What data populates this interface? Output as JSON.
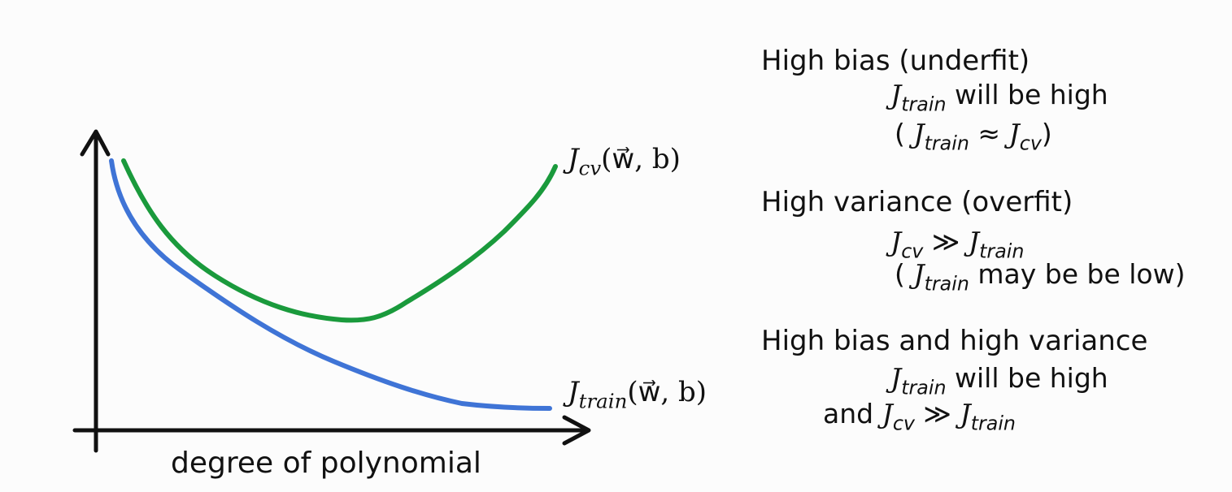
{
  "diagram": {
    "x_axis_label": "degree of polynomial",
    "curves": {
      "cv": {
        "label_main": "J",
        "label_sub": "cv",
        "label_args": "(w⃗, b)",
        "color": "#1a9a3c"
      },
      "train": {
        "label_main": "J",
        "label_sub": "train",
        "label_args": "(w⃗, b)",
        "color": "#3f74d6"
      }
    }
  },
  "notes": {
    "high_bias": {
      "heading": "High bias (underfit)",
      "line1_sym": "J",
      "line1_sub": "train",
      "line1_text": " will be high",
      "line2": {
        "open": "( ",
        "a": "J",
        "a_sub": "train",
        "op": " ≈ ",
        "b": "J",
        "b_sub": "cv",
        "close": ")"
      }
    },
    "high_variance": {
      "heading": "High variance (overfit)",
      "line1": {
        "a": "J",
        "a_sub": "cv",
        "op": " ≫ ",
        "b": "J",
        "b_sub": "train"
      },
      "line2": {
        "open": "( ",
        "a": "J",
        "a_sub": "train",
        "text": " may be be low)"
      }
    },
    "both": {
      "heading": "High bias and high variance",
      "line1_sym": "J",
      "line1_sub": "train",
      "line1_text": " will be high",
      "line2": {
        "prefix": "and ",
        "a": "J",
        "a_sub": "cv",
        "op": " ≫ ",
        "b": "J",
        "b_sub": "train"
      }
    }
  }
}
